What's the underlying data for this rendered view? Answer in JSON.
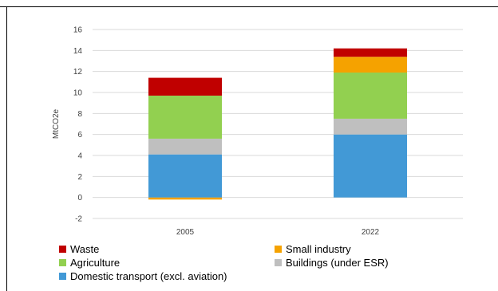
{
  "chart_data": {
    "type": "bar",
    "stacked": true,
    "categories": [
      "2005",
      "2022"
    ],
    "ylabel": "MtCO2e",
    "ylim": [
      -2,
      16
    ],
    "yticks": [
      -2,
      0,
      2,
      4,
      6,
      8,
      10,
      12,
      14,
      16
    ],
    "grid": true,
    "legend_position": "bottom",
    "series": [
      {
        "name": "Small industry",
        "color": "#F5A200",
        "values": [
          -0.2,
          0
        ]
      },
      {
        "name": "Domestic transport (excl. aviation)",
        "color": "#4299D6",
        "values": [
          4.1,
          6.0
        ]
      },
      {
        "name": "Buildings (under ESR)",
        "color": "#BFBFBF",
        "values": [
          1.5,
          1.5
        ]
      },
      {
        "name": "Agriculture",
        "color": "#92D050",
        "values": [
          4.1,
          4.4
        ]
      },
      {
        "name": "Small industry",
        "color": "#F5A200",
        "values": [
          0,
          1.5
        ]
      },
      {
        "name": "Waste",
        "color": "#C00000",
        "values": [
          1.7,
          0.8
        ]
      }
    ],
    "legend": [
      {
        "name": "Waste",
        "color": "#C00000"
      },
      {
        "name": "Small industry",
        "color": "#F5A200"
      },
      {
        "name": "Agriculture",
        "color": "#92D050"
      },
      {
        "name": "Buildings (under ESR)",
        "color": "#BFBFBF"
      },
      {
        "name": "Domestic transport (excl. aviation)",
        "color": "#4299D6"
      }
    ]
  }
}
